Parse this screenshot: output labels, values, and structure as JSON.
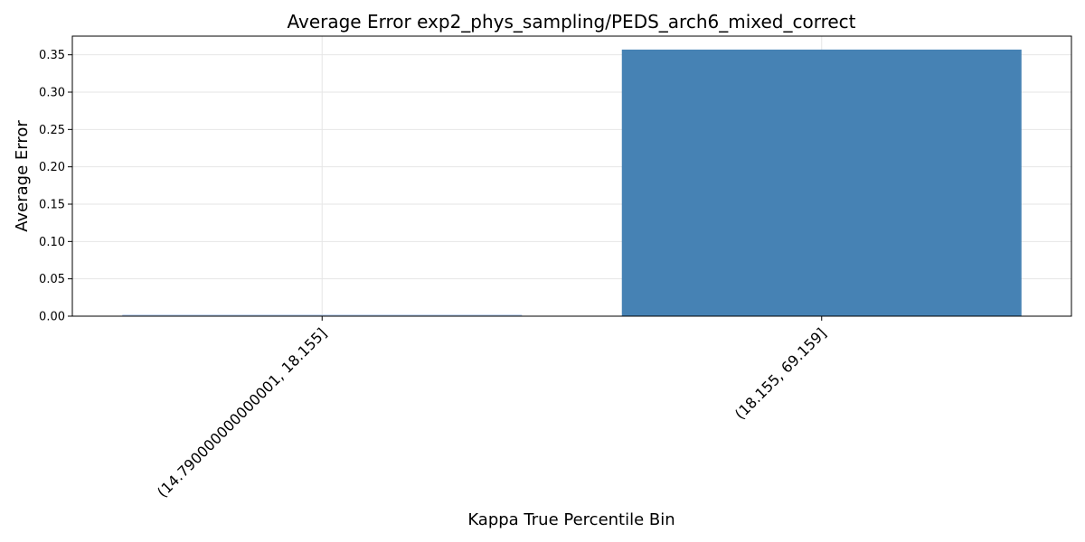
{
  "chart_data": {
    "type": "bar",
    "title": "Average Error exp2_phys_sampling/PEDS_arch6_mixed_correct",
    "xlabel": "Kappa True Percentile Bin",
    "ylabel": "Average Error",
    "categories": [
      "(14.790000000000001, 18.155]",
      "(18.155, 69.159]"
    ],
    "values": [
      0.002,
      0.357
    ],
    "bar_colors": [
      "#aec6e8",
      "#4682b4"
    ],
    "ylim": [
      0,
      0.375
    ],
    "yticks": [
      0.0,
      0.05,
      0.1,
      0.15,
      0.2,
      0.25,
      0.3,
      0.35
    ],
    "ytick_labels": [
      "0.00",
      "0.05",
      "0.10",
      "0.15",
      "0.20",
      "0.25",
      "0.30",
      "0.35"
    ],
    "grid": true,
    "xtick_rotation": -45
  }
}
